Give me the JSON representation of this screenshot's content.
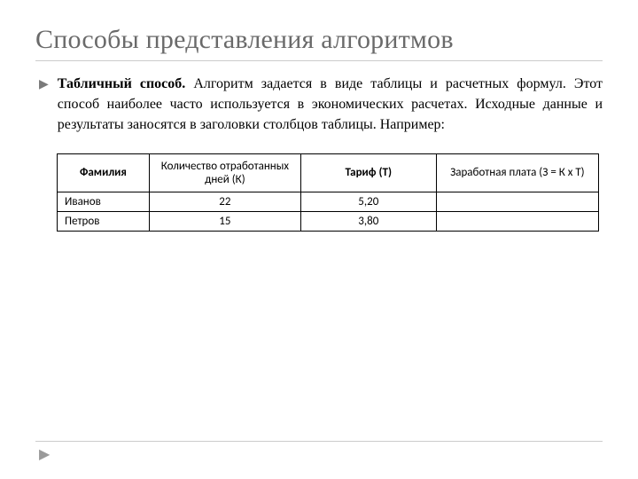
{
  "title": "Способы представления алгоритмов",
  "bullet_glyph": "▶",
  "paragraph": {
    "bold_lead": "Табличный способ.",
    "rest": " Алгоритм задается в виде таблицы и расчетных формул. Этот способ наиболее часто используется в экономических расчетах. Исходные данные и результаты заносятся в заголовки столбцов таблицы. Например:"
  },
  "table": {
    "headers": [
      {
        "bold": "Фамилия",
        "sub": ""
      },
      {
        "bold": "",
        "plain": "Количество отработанных дней (К)"
      },
      {
        "bold": "Тариф (Т)",
        "sub": ""
      },
      {
        "bold": "",
        "plain": "Заработная плата (З = К х Т)"
      }
    ],
    "rows": [
      {
        "c1": "Иванов",
        "c2": "22",
        "c3": "5,20",
        "c4": ""
      },
      {
        "c1": "Петров",
        "c2": "15",
        "c3": "3,80",
        "c4": ""
      }
    ]
  },
  "footer_arrow": "▶"
}
